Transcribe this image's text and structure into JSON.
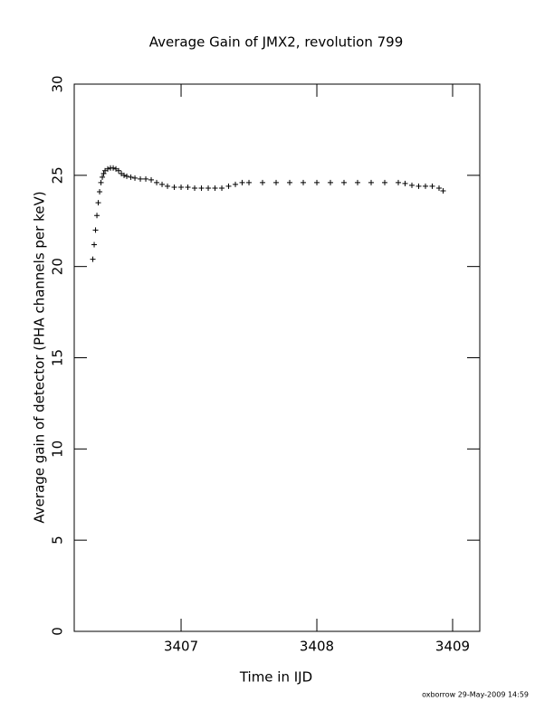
{
  "chart_data": {
    "type": "scatter",
    "title": "Average Gain of JMX2, revolution 799",
    "x_label": "Time in IJD",
    "y_label": "Average gain of detector (PHA channels per keV)",
    "footer": "oxborrow 29-May-2009 14:59",
    "marker": "plus",
    "color": "#000000",
    "x": [
      3406.35,
      3406.36,
      3406.37,
      3406.38,
      3406.39,
      3406.4,
      3406.41,
      3406.42,
      3406.43,
      3406.44,
      3406.46,
      3406.48,
      3406.5,
      3406.52,
      3406.54,
      3406.56,
      3406.58,
      3406.6,
      3406.63,
      3406.66,
      3406.7,
      3406.74,
      3406.78,
      3406.82,
      3406.86,
      3406.9,
      3406.95,
      3407.0,
      3407.05,
      3407.1,
      3407.15,
      3407.2,
      3407.25,
      3407.3,
      3407.35,
      3407.4,
      3407.45,
      3407.5,
      3407.6,
      3407.7,
      3407.8,
      3407.9,
      3408.0,
      3408.1,
      3408.2,
      3408.3,
      3408.4,
      3408.5,
      3408.6,
      3408.65,
      3408.7,
      3408.75,
      3408.8,
      3408.85,
      3408.9,
      3408.93
    ],
    "values": [
      20.4,
      21.2,
      22.0,
      22.8,
      23.5,
      24.1,
      24.6,
      24.9,
      25.1,
      25.25,
      25.35,
      25.4,
      25.4,
      25.35,
      25.25,
      25.1,
      25.0,
      24.95,
      24.9,
      24.85,
      24.8,
      24.8,
      24.75,
      24.6,
      24.5,
      24.4,
      24.35,
      24.35,
      24.35,
      24.3,
      24.3,
      24.3,
      24.3,
      24.3,
      24.4,
      24.5,
      24.6,
      24.6,
      24.6,
      24.6,
      24.6,
      24.6,
      24.6,
      24.6,
      24.6,
      24.6,
      24.6,
      24.6,
      24.6,
      24.55,
      24.45,
      24.4,
      24.4,
      24.4,
      24.3,
      24.15
    ],
    "xlim": [
      3406.213,
      3409.2
    ],
    "xticks": [
      3407,
      3408,
      3409
    ],
    "ylim": [
      0,
      30
    ],
    "yticks": [
      0,
      5,
      10,
      15,
      20,
      25,
      30
    ]
  }
}
